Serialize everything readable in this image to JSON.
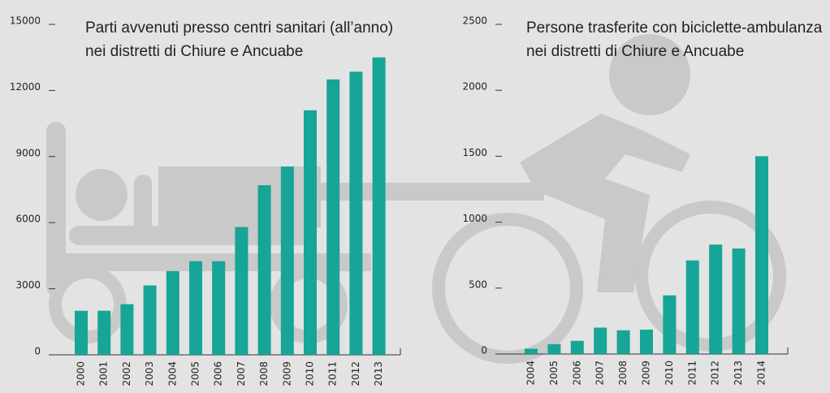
{
  "chart_data": [
    {
      "type": "bar",
      "title": [
        "Parti avvenuti presso centri sanitari (all’anno)",
        "nei distretti di Chiure e Ancuabe"
      ],
      "categories": [
        "2000",
        "2001",
        "2002",
        "2003",
        "2004",
        "2005",
        "2006",
        "2007",
        "2008",
        "2009",
        "2010",
        "2011",
        "2012",
        "2013"
      ],
      "values": [
        2000,
        2000,
        2300,
        3150,
        3800,
        4250,
        4250,
        5800,
        7700,
        8550,
        11100,
        12500,
        12850,
        13500
      ],
      "color": "#16a596",
      "ylim": [
        0,
        15000
      ],
      "yticks": [
        0,
        3000,
        6000,
        9000,
        12000,
        15000
      ]
    },
    {
      "type": "bar",
      "title": [
        "Persone trasferite con biciclette-ambulanza",
        "nei distretti di Chiure e Ancuabe"
      ],
      "categories": [
        "2004",
        "2005",
        "2006",
        "2007",
        "2008",
        "2009",
        "2010",
        "2011",
        "2012",
        "2013",
        "2014"
      ],
      "values": [
        40,
        75,
        100,
        200,
        180,
        185,
        445,
        710,
        830,
        800,
        1500
      ],
      "color": "#16a596",
      "ylim": [
        0,
        2500
      ],
      "yticks": [
        0,
        500,
        1000,
        1500,
        2000,
        2500
      ]
    }
  ]
}
